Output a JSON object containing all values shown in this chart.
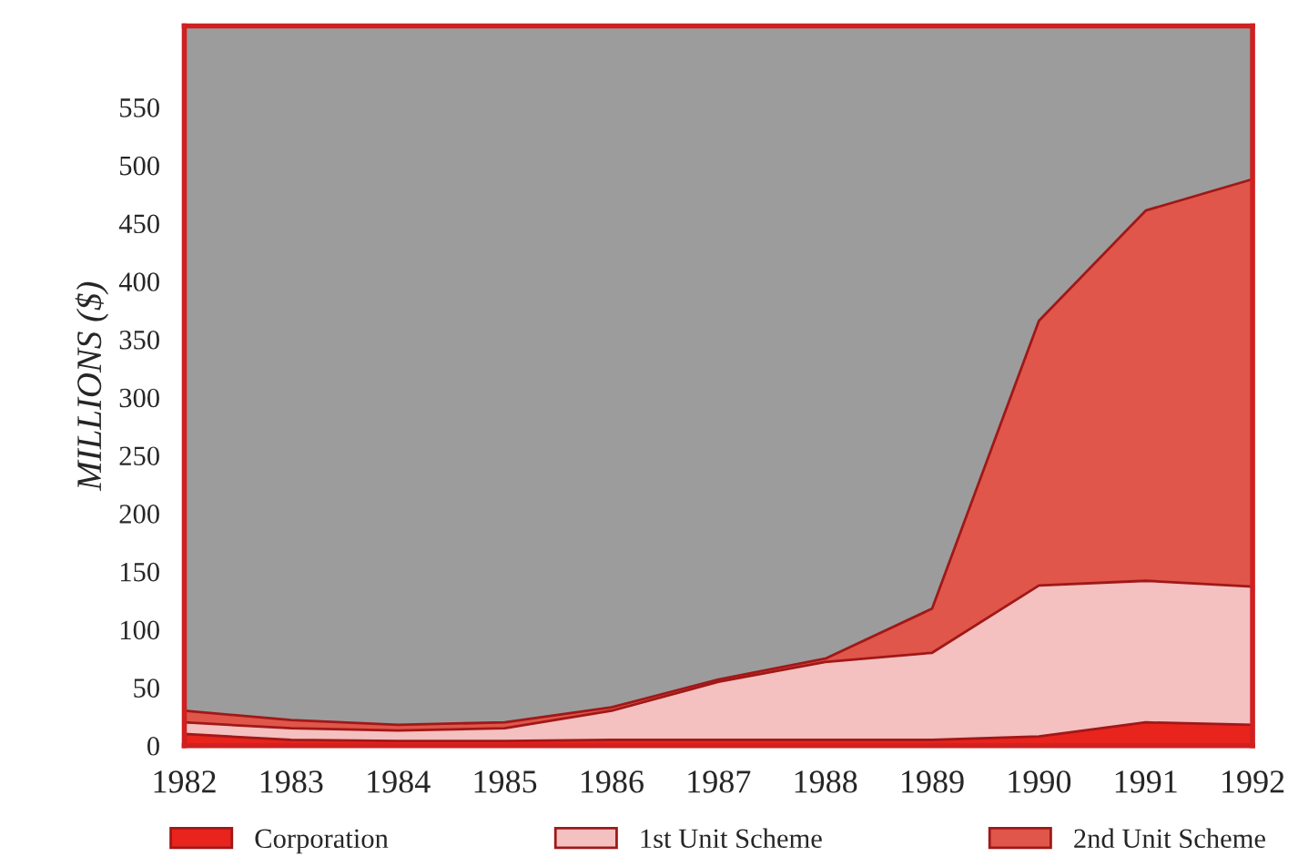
{
  "chart_data": {
    "type": "area",
    "stacked": true,
    "ylabel": "MILLIONS ($)",
    "x": [
      1982,
      1983,
      1984,
      1985,
      1986,
      1987,
      1988,
      1989,
      1990,
      1991,
      1992
    ],
    "series": [
      {
        "name": "Corporation",
        "color": "#e8241c",
        "values": [
          10,
          5,
          4,
          4,
          5,
          5,
          5,
          5,
          8,
          20,
          18
        ]
      },
      {
        "name": "1st Unit Scheme",
        "color": "#f4c0c0",
        "values": [
          10,
          10,
          9,
          11,
          25,
          50,
          67,
          75,
          130,
          122,
          119
        ]
      },
      {
        "name": "2nd Unit Scheme",
        "color": "#e0564a",
        "values": [
          10,
          7,
          5,
          5,
          3,
          2,
          3,
          38,
          228,
          319,
          351
        ]
      }
    ],
    "xlim": [
      1982,
      1992
    ],
    "xticks": [
      1982,
      1983,
      1984,
      1985,
      1986,
      1987,
      1988,
      1989,
      1990,
      1991,
      1992
    ],
    "ylim": [
      0,
      620
    ],
    "yticks": [
      0,
      50,
      100,
      150,
      200,
      250,
      300,
      350,
      400,
      450,
      500,
      550
    ],
    "grid": false,
    "legend": "bottom"
  }
}
